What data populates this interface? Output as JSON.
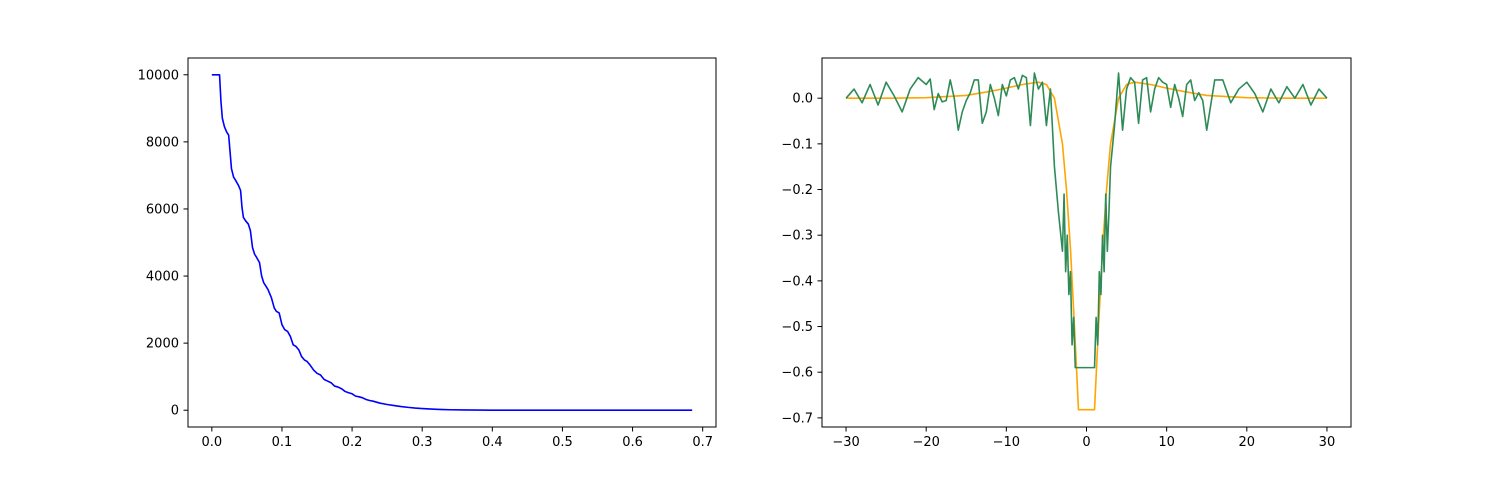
{
  "chart_data": [
    {
      "type": "line",
      "title": "",
      "xlabel": "",
      "ylabel": "",
      "xlim": [
        -0.034,
        0.719
      ],
      "ylim": [
        -500,
        10500
      ],
      "xticks": [
        0.0,
        0.1,
        0.2,
        0.3,
        0.4,
        0.5,
        0.6,
        0.7
      ],
      "xtick_labels": [
        "0.0",
        "0.1",
        "0.2",
        "0.3",
        "0.4",
        "0.5",
        "0.6",
        "0.7"
      ],
      "yticks": [
        0,
        2000,
        4000,
        6000,
        8000,
        10000
      ],
      "ytick_labels": [
        "0",
        "2000",
        "4000",
        "6000",
        "8000",
        "10000"
      ],
      "grid": false,
      "series": [
        {
          "color": "#0000ff",
          "x": [
            0.0,
            0.011,
            0.013,
            0.015,
            0.018,
            0.021,
            0.024,
            0.026,
            0.028,
            0.031,
            0.034,
            0.038,
            0.041,
            0.043,
            0.045,
            0.048,
            0.052,
            0.055,
            0.058,
            0.061,
            0.064,
            0.068,
            0.071,
            0.074,
            0.077,
            0.08,
            0.085,
            0.089,
            0.092,
            0.096,
            0.1,
            0.104,
            0.108,
            0.112,
            0.116,
            0.12,
            0.124,
            0.128,
            0.132,
            0.136,
            0.14,
            0.145,
            0.15,
            0.155,
            0.16,
            0.165,
            0.17,
            0.175,
            0.18,
            0.185,
            0.19,
            0.195,
            0.2,
            0.205,
            0.21,
            0.215,
            0.22,
            0.225,
            0.23,
            0.24,
            0.25,
            0.26,
            0.27,
            0.28,
            0.29,
            0.3,
            0.31,
            0.32,
            0.33,
            0.34,
            0.36,
            0.38,
            0.4,
            0.42,
            0.45,
            0.5,
            0.55,
            0.6,
            0.65,
            0.685
          ],
          "y": [
            10000,
            10000,
            9200,
            8700,
            8450,
            8300,
            8200,
            7700,
            7200,
            6950,
            6850,
            6700,
            6550,
            6050,
            5750,
            5650,
            5550,
            5350,
            4850,
            4650,
            4550,
            4400,
            4000,
            3800,
            3700,
            3600,
            3350,
            3050,
            2950,
            2900,
            2550,
            2400,
            2350,
            2200,
            1950,
            1900,
            1800,
            1600,
            1500,
            1450,
            1350,
            1200,
            1100,
            1050,
            920,
            870,
            820,
            720,
            690,
            640,
            560,
            520,
            490,
            420,
            400,
            370,
            320,
            290,
            270,
            210,
            170,
            140,
            110,
            85,
            65,
            50,
            38,
            28,
            20,
            14,
            8,
            4,
            2,
            1,
            0,
            0,
            0,
            0,
            0,
            0
          ]
        }
      ]
    },
    {
      "type": "line",
      "title": "",
      "xlabel": "",
      "ylabel": "",
      "xlim": [
        -33,
        33
      ],
      "ylim": [
        -0.72,
        0.088
      ],
      "xticks": [
        -30,
        -20,
        -10,
        0,
        10,
        20,
        30
      ],
      "xtick_labels": [
        "−30",
        "−20",
        "−10",
        "0",
        "10",
        "20",
        "30"
      ],
      "yticks": [
        0.0,
        -0.1,
        -0.2,
        -0.3,
        -0.4,
        -0.5,
        -0.6,
        -0.7
      ],
      "ytick_labels": [
        "0.0",
        "−0.1",
        "−0.2",
        "−0.3",
        "−0.4",
        "−0.5",
        "−0.6",
        "−0.7"
      ],
      "grid": false,
      "series": [
        {
          "color": "#ffa500",
          "x": [
            -30,
            -25,
            -20,
            -15,
            -12,
            -10,
            -8,
            -6,
            -5,
            -4,
            -3,
            -2.5,
            -2,
            -1.5,
            -1,
            1,
            1.5,
            2,
            2.5,
            3,
            4,
            5,
            6,
            8,
            10,
            12,
            15,
            20,
            25,
            30
          ],
          "y": [
            0.0,
            0.0,
            0.001,
            0.006,
            0.015,
            0.022,
            0.03,
            0.035,
            0.03,
            0.0,
            -0.1,
            -0.2,
            -0.33,
            -0.5,
            -0.682,
            -0.682,
            -0.5,
            -0.33,
            -0.2,
            -0.1,
            0.0,
            0.03,
            0.035,
            0.03,
            0.022,
            0.015,
            0.006,
            0.001,
            0.0,
            0.0
          ]
        },
        {
          "color": "#2e8b57",
          "x": [
            -30,
            -29,
            -28,
            -27,
            -26,
            -25,
            -24,
            -23,
            -22,
            -21,
            -20,
            -19.5,
            -19,
            -18.5,
            -18,
            -17.5,
            -17,
            -16.5,
            -16,
            -15.5,
            -15,
            -14.5,
            -14,
            -13.5,
            -13,
            -12.5,
            -12,
            -11.5,
            -11,
            -10.5,
            -10,
            -9.5,
            -9,
            -8.5,
            -8,
            -7.5,
            -7,
            -6.5,
            -6,
            -5.5,
            -5,
            -4.5,
            -4,
            -3.5,
            -3,
            -2.8,
            -2.6,
            -2.4,
            -2.2,
            -2,
            -1.8,
            -1.6,
            -1.4,
            -1.2,
            -1,
            1,
            1.2,
            1.4,
            1.6,
            1.8,
            2,
            2.2,
            2.4,
            2.6,
            2.8,
            3,
            3.5,
            4,
            4.5,
            5,
            5.5,
            6,
            6.5,
            7,
            7.5,
            8,
            8.5,
            9,
            9.5,
            10,
            10.5,
            11,
            11.5,
            12,
            12.5,
            13,
            13.5,
            14,
            14.5,
            15,
            16,
            17,
            18,
            19,
            20,
            21,
            22,
            23,
            24,
            25,
            26,
            27,
            28,
            29,
            30
          ],
          "y": [
            0.0,
            0.02,
            -0.01,
            0.03,
            -0.015,
            0.035,
            0.005,
            -0.03,
            0.02,
            0.045,
            0.03,
            0.042,
            -0.025,
            0.01,
            -0.008,
            -0.005,
            0.04,
            0.0,
            -0.07,
            -0.03,
            -0.005,
            0.012,
            0.04,
            0.04,
            -0.055,
            -0.03,
            0.03,
            0.0,
            -0.038,
            0.03,
            0.005,
            0.04,
            0.045,
            0.02,
            0.05,
            0.045,
            -0.06,
            0.055,
            0.02,
            0.035,
            -0.06,
            0.02,
            -0.15,
            -0.25,
            -0.335,
            -0.21,
            -0.38,
            -0.3,
            -0.43,
            -0.38,
            -0.54,
            -0.48,
            -0.59,
            -0.59,
            -0.59,
            -0.59,
            -0.48,
            -0.54,
            -0.38,
            -0.43,
            -0.3,
            -0.38,
            -0.21,
            -0.335,
            -0.25,
            -0.15,
            -0.06,
            0.055,
            -0.07,
            0.02,
            0.045,
            0.035,
            -0.055,
            0.04,
            0.045,
            -0.03,
            0.02,
            0.045,
            0.035,
            0.03,
            -0.02,
            0.03,
            0.0,
            -0.04,
            0.03,
            0.04,
            -0.005,
            0.012,
            -0.005,
            -0.07,
            0.04,
            0.04,
            -0.01,
            0.02,
            0.035,
            0.01,
            -0.03,
            0.02,
            -0.01,
            0.025,
            0.0,
            0.03,
            -0.015,
            0.02,
            0.0
          ]
        }
      ]
    }
  ]
}
